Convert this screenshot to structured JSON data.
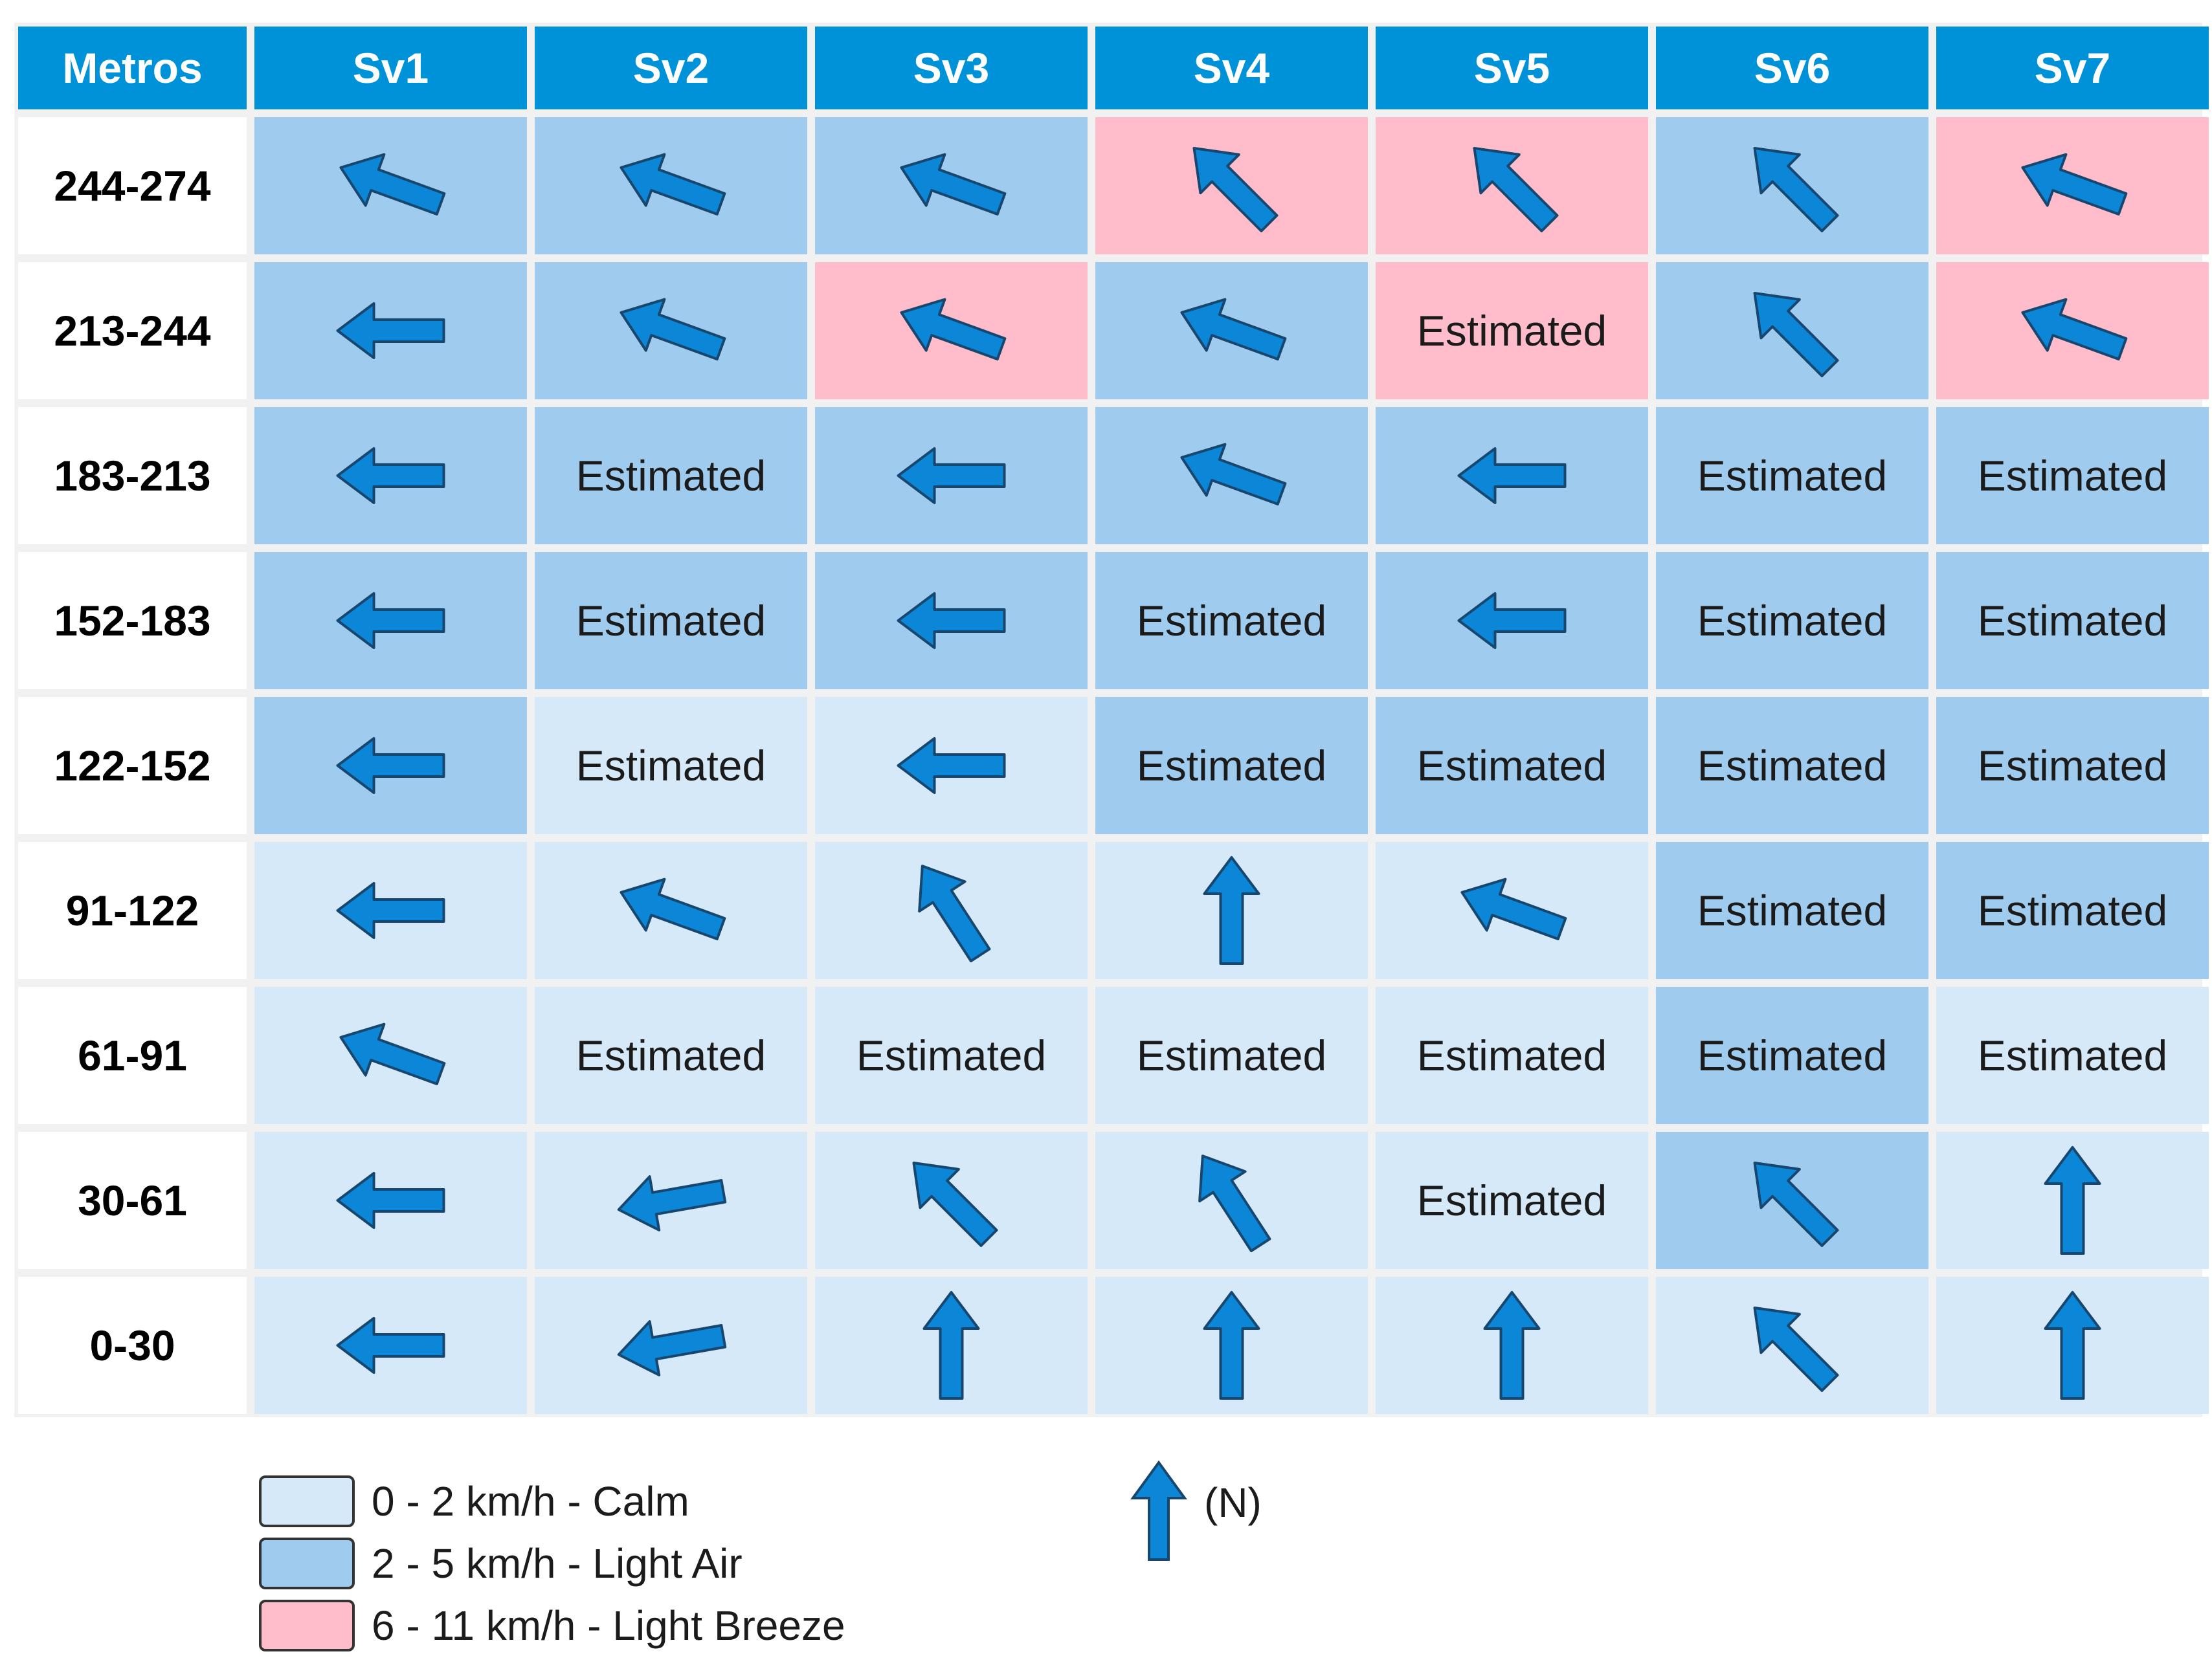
{
  "colors": {
    "header": "#0092d8",
    "calm": "#d6e9f8",
    "light_air": "#9fcbef",
    "light_breeze": "#ffbdcc",
    "arrow_fill": "#0c86d6",
    "arrow_stroke": "#17476e"
  },
  "header": {
    "corner_label": "Metros",
    "columns": [
      "Sv1",
      "Sv2",
      "Sv3",
      "Sv4",
      "Sv5",
      "Sv6",
      "Sv7"
    ]
  },
  "rows": [
    {
      "label": "244-274",
      "cells": [
        {
          "cat": "light_air",
          "dir": "WNW"
        },
        {
          "cat": "light_air",
          "dir": "WNW"
        },
        {
          "cat": "light_air",
          "dir": "WNW"
        },
        {
          "cat": "light_breeze",
          "dir": "NW"
        },
        {
          "cat": "light_breeze",
          "dir": "NW"
        },
        {
          "cat": "light_air",
          "dir": "NW"
        },
        {
          "cat": "light_breeze",
          "dir": "WNW"
        }
      ]
    },
    {
      "label": "213-244",
      "cells": [
        {
          "cat": "light_air",
          "dir": "W"
        },
        {
          "cat": "light_air",
          "dir": "WNW"
        },
        {
          "cat": "light_breeze",
          "dir": "WNW"
        },
        {
          "cat": "light_air",
          "dir": "WNW"
        },
        {
          "cat": "light_breeze",
          "text": "Estimated"
        },
        {
          "cat": "light_air",
          "dir": "NW"
        },
        {
          "cat": "light_breeze",
          "dir": "WNW"
        }
      ]
    },
    {
      "label": "183-213",
      "cells": [
        {
          "cat": "light_air",
          "dir": "W"
        },
        {
          "cat": "light_air",
          "text": "Estimated"
        },
        {
          "cat": "light_air",
          "dir": "W"
        },
        {
          "cat": "light_air",
          "dir": "WNW"
        },
        {
          "cat": "light_air",
          "dir": "W"
        },
        {
          "cat": "light_air",
          "text": "Estimated"
        },
        {
          "cat": "light_air",
          "text": "Estimated"
        }
      ]
    },
    {
      "label": "152-183",
      "cells": [
        {
          "cat": "light_air",
          "dir": "W"
        },
        {
          "cat": "light_air",
          "text": "Estimated"
        },
        {
          "cat": "light_air",
          "dir": "W"
        },
        {
          "cat": "light_air",
          "text": "Estimated"
        },
        {
          "cat": "light_air",
          "dir": "W"
        },
        {
          "cat": "light_air",
          "text": "Estimated"
        },
        {
          "cat": "light_air",
          "text": "Estimated"
        }
      ]
    },
    {
      "label": "122-152",
      "cells": [
        {
          "cat": "light_air",
          "dir": "W"
        },
        {
          "cat": "calm",
          "text": "Estimated"
        },
        {
          "cat": "calm",
          "dir": "W"
        },
        {
          "cat": "light_air",
          "text": "Estimated"
        },
        {
          "cat": "light_air",
          "text": "Estimated"
        },
        {
          "cat": "light_air",
          "text": "Estimated"
        },
        {
          "cat": "light_air",
          "text": "Estimated"
        }
      ]
    },
    {
      "label": "91-122",
      "cells": [
        {
          "cat": "calm",
          "dir": "W"
        },
        {
          "cat": "calm",
          "dir": "WNW"
        },
        {
          "cat": "calm",
          "dir": "NNW"
        },
        {
          "cat": "calm",
          "dir": "N"
        },
        {
          "cat": "calm",
          "dir": "WNW"
        },
        {
          "cat": "light_air",
          "text": "Estimated"
        },
        {
          "cat": "light_air",
          "text": "Estimated"
        }
      ]
    },
    {
      "label": "61-91",
      "cells": [
        {
          "cat": "calm",
          "dir": "WNW"
        },
        {
          "cat": "calm",
          "text": "Estimated"
        },
        {
          "cat": "calm",
          "text": "Estimated"
        },
        {
          "cat": "calm",
          "text": "Estimated"
        },
        {
          "cat": "calm",
          "text": "Estimated"
        },
        {
          "cat": "light_air",
          "text": "Estimated"
        },
        {
          "cat": "calm",
          "text": "Estimated"
        }
      ]
    },
    {
      "label": "30-61",
      "cells": [
        {
          "cat": "calm",
          "dir": "W"
        },
        {
          "cat": "calm",
          "dir": "WSW"
        },
        {
          "cat": "calm",
          "dir": "NW"
        },
        {
          "cat": "calm",
          "dir": "NNW"
        },
        {
          "cat": "calm",
          "text": "Estimated"
        },
        {
          "cat": "light_air",
          "dir": "NW"
        },
        {
          "cat": "calm",
          "dir": "N"
        }
      ]
    },
    {
      "label": "0-30",
      "cells": [
        {
          "cat": "calm",
          "dir": "W"
        },
        {
          "cat": "calm",
          "dir": "WSW"
        },
        {
          "cat": "calm",
          "dir": "N"
        },
        {
          "cat": "calm",
          "dir": "N"
        },
        {
          "cat": "calm",
          "dir": "N"
        },
        {
          "cat": "calm",
          "dir": "NW"
        },
        {
          "cat": "calm",
          "dir": "N"
        }
      ]
    }
  ],
  "legend": {
    "items": [
      {
        "cat": "calm",
        "label": "0 - 2 km/h - Calm"
      },
      {
        "cat": "light_air",
        "label": "2 - 5 km/h - Light Air"
      },
      {
        "cat": "light_breeze",
        "label": "6 - 11 km/h - Light Breeze"
      }
    ],
    "north_label": "(N)",
    "north_icon": "north-arrow-icon"
  }
}
